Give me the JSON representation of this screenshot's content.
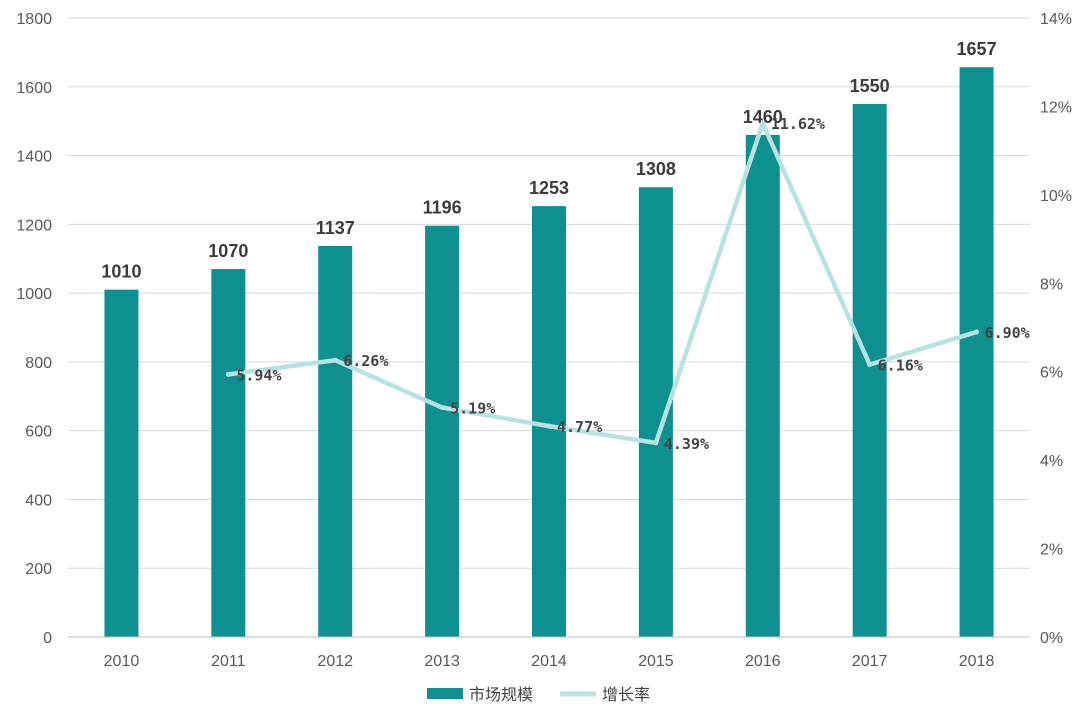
{
  "chart_data": {
    "type": "bar",
    "categories": [
      "2010",
      "2011",
      "2012",
      "2013",
      "2014",
      "2015",
      "2016",
      "2017",
      "2018"
    ],
    "series": [
      {
        "name": "市场规模",
        "kind": "bar",
        "axis": "left",
        "color": "#0e9090",
        "values": [
          1010,
          1070,
          1137,
          1196,
          1253,
          1308,
          1460,
          1550,
          1657
        ],
        "labels": [
          "1010",
          "1070",
          "1137",
          "1196",
          "1253",
          "1308",
          "1460",
          "1550",
          "1657"
        ]
      },
      {
        "name": "增长率",
        "kind": "line",
        "axis": "right",
        "color": "#b8e2e2",
        "values": [
          null,
          5.94,
          6.26,
          5.19,
          4.77,
          4.39,
          11.62,
          6.16,
          6.9
        ],
        "labels": [
          "",
          "5.94%",
          "6.26%",
          "5.19%",
          "4.77%",
          "4.39%",
          "11.62%",
          "6.16%",
          "6.90%"
        ]
      }
    ],
    "ylim": [
      0,
      1800
    ],
    "y_ticks": [
      "0",
      "200",
      "400",
      "600",
      "800",
      "1000",
      "1200",
      "1400",
      "1600",
      "1800"
    ],
    "y2lim": [
      0,
      14
    ],
    "y2_ticks": [
      "0%",
      "2%",
      "4%",
      "6%",
      "8%",
      "10%",
      "12%",
      "14%"
    ],
    "grid": true,
    "legend_position": "bottom",
    "legend": [
      "市场规模",
      "增长率"
    ]
  }
}
